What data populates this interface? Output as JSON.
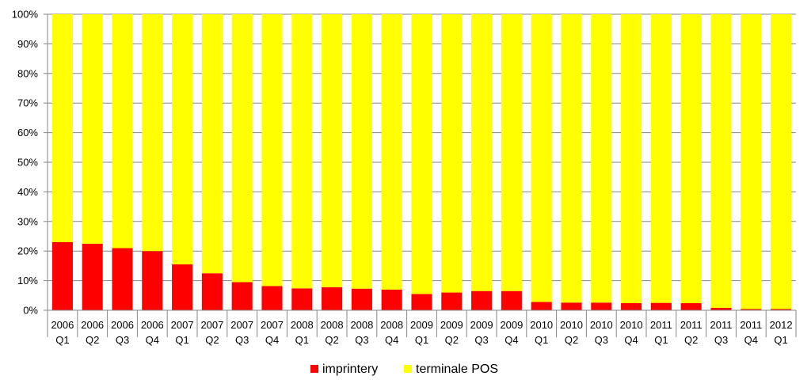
{
  "chart_data": {
    "type": "bar",
    "stacked": true,
    "percent_stacked": true,
    "title": "",
    "xlabel": "",
    "ylabel": "",
    "ylim": [
      0,
      100
    ],
    "y_ticks": [
      "0%",
      "10%",
      "20%",
      "30%",
      "40%",
      "50%",
      "60%",
      "70%",
      "80%",
      "90%",
      "100%"
    ],
    "grid": true,
    "legend_position": "bottom",
    "categories": [
      [
        "2006",
        "Q1"
      ],
      [
        "2006",
        "Q2"
      ],
      [
        "2006",
        "Q3"
      ],
      [
        "2006",
        "Q4"
      ],
      [
        "2007",
        "Q1"
      ],
      [
        "2007",
        "Q2"
      ],
      [
        "2007",
        "Q3"
      ],
      [
        "2007",
        "Q4"
      ],
      [
        "2008",
        "Q1"
      ],
      [
        "2008",
        "Q2"
      ],
      [
        "2008",
        "Q3"
      ],
      [
        "2008",
        "Q4"
      ],
      [
        "2009",
        "Q1"
      ],
      [
        "2009",
        "Q2"
      ],
      [
        "2009",
        "Q3"
      ],
      [
        "2009",
        "Q4"
      ],
      [
        "2010",
        "Q1"
      ],
      [
        "2010",
        "Q2"
      ],
      [
        "2010",
        "Q3"
      ],
      [
        "2010",
        "Q4"
      ],
      [
        "2011",
        "Q1"
      ],
      [
        "2011",
        "Q2"
      ],
      [
        "2011",
        "Q3"
      ],
      [
        "2011",
        "Q4"
      ],
      [
        "2012",
        "Q1"
      ]
    ],
    "series": [
      {
        "name": "imprintery",
        "color": "#ff0000",
        "values": [
          23,
          22.5,
          21,
          20,
          15.5,
          12.5,
          9.5,
          8.2,
          7.4,
          7.8,
          7.3,
          7,
          5.5,
          6,
          6.5,
          6.5,
          2.8,
          2.6,
          2.6,
          2.4,
          2.5,
          2.4,
          0.8,
          0.4,
          0.4
        ]
      },
      {
        "name": "terminale POS",
        "color": "#ffff00",
        "values": [
          77,
          77.5,
          79,
          80,
          84.5,
          87.5,
          90.5,
          91.8,
          92.6,
          92.2,
          92.7,
          93,
          94.5,
          94,
          93.5,
          93.5,
          97.2,
          97.4,
          97.4,
          97.6,
          97.5,
          97.6,
          99.2,
          99.6,
          99.6
        ]
      }
    ]
  }
}
